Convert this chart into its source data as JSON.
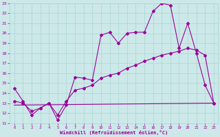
{
  "xlabel": "Windchill (Refroidissement éolien,°C)",
  "bg_color": "#cce8e8",
  "line1_x": [
    0,
    1,
    2,
    3,
    4,
    5,
    6,
    7,
    8,
    9,
    10,
    11,
    12,
    13,
    14,
    15,
    16,
    17,
    18,
    19,
    20,
    21,
    22,
    23
  ],
  "line1_y": [
    14.5,
    13.2,
    11.8,
    12.5,
    13.0,
    11.3,
    12.8,
    15.6,
    15.5,
    15.3,
    19.8,
    20.1,
    19.0,
    20.0,
    20.1,
    20.1,
    22.2,
    23.0,
    22.8,
    18.5,
    21.0,
    18.0,
    14.8,
    13.0
  ],
  "line2_x": [
    0,
    1,
    2,
    3,
    4,
    5,
    6,
    7,
    8,
    9,
    10,
    11,
    12,
    13,
    14,
    15,
    16,
    17,
    18,
    19,
    20,
    21,
    22,
    23
  ],
  "line2_y": [
    13.2,
    13.0,
    12.2,
    12.5,
    13.0,
    11.8,
    13.2,
    14.3,
    14.5,
    14.8,
    15.5,
    15.8,
    16.0,
    16.5,
    16.8,
    17.2,
    17.5,
    17.8,
    18.0,
    18.2,
    18.5,
    18.3,
    17.8,
    13.0
  ],
  "line3_x": [
    0,
    23
  ],
  "line3_y": [
    12.8,
    13.0
  ],
  "line_color": "#990099",
  "ylim": [
    11,
    23
  ],
  "xlim": [
    -0.5,
    23.5
  ],
  "yticks": [
    11,
    12,
    13,
    14,
    15,
    16,
    17,
    18,
    19,
    20,
    21,
    22,
    23
  ],
  "xticks": [
    0,
    1,
    2,
    3,
    4,
    5,
    6,
    7,
    8,
    9,
    10,
    11,
    12,
    13,
    14,
    15,
    16,
    17,
    18,
    19,
    20,
    21,
    22,
    23
  ],
  "grid_color": "#aad4d4",
  "marker": "D",
  "marker_size": 2.0,
  "lw": 0.8
}
